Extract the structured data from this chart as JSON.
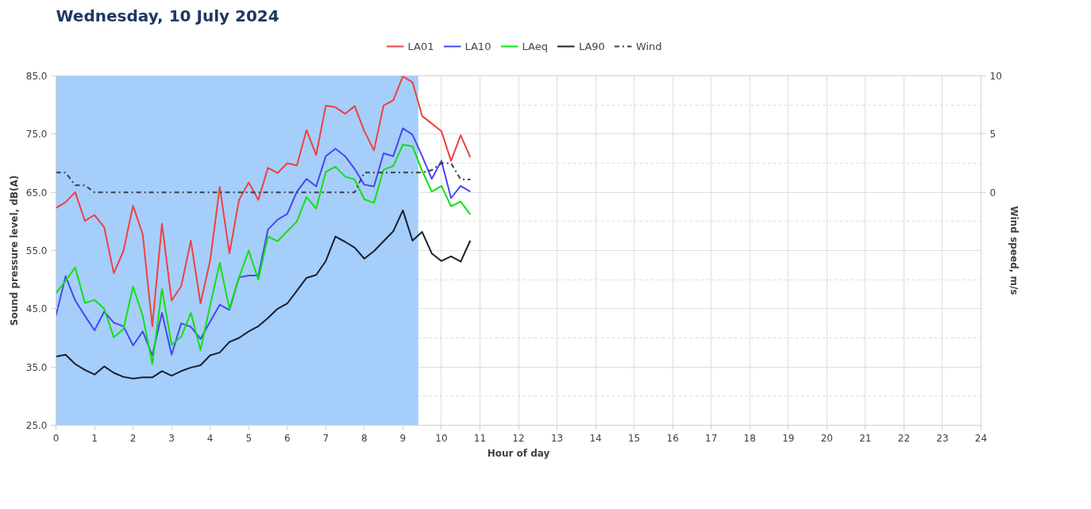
{
  "chart_data": {
    "type": "line",
    "title": "Wednesday, 10 July 2024",
    "xlabel": "Hour of day",
    "ylabel": "Sound pressure level, dB(A)",
    "y2label": "Wind speed, m/s",
    "x": [
      0,
      0.25,
      0.5,
      0.75,
      1,
      1.25,
      1.5,
      1.75,
      2,
      2.25,
      2.5,
      2.75,
      3,
      3.25,
      3.5,
      3.75,
      4,
      4.25,
      4.5,
      4.75,
      5,
      5.25,
      5.5,
      5.75,
      6,
      6.25,
      6.5,
      6.75,
      7,
      7.25,
      7.5,
      7.75,
      8,
      8.25,
      8.5,
      8.75,
      9,
      9.25,
      9.5,
      9.75,
      10,
      10.25,
      10.5,
      10.75
    ],
    "series": [
      {
        "name": "LA01",
        "color": "#f04040",
        "values": [
          62.3,
          63.3,
          65.0,
          60.1,
          61.1,
          59.0,
          51.1,
          54.9,
          62.7,
          57.8,
          42.0,
          59.6,
          46.4,
          48.9,
          56.7,
          45.9,
          53.3,
          65.9,
          54.5,
          63.7,
          66.7,
          63.7,
          69.2,
          68.3,
          70.0,
          69.6,
          75.7,
          71.4,
          79.9,
          79.6,
          78.5,
          79.8,
          75.5,
          72.2,
          79.9,
          80.8,
          84.9,
          83.9,
          78.1,
          76.8,
          75.5,
          70.4,
          74.8,
          71.0
        ]
      },
      {
        "name": "LA10",
        "color": "#4646f0",
        "values": [
          43.8,
          50.6,
          46.4,
          43.8,
          41.3,
          44.5,
          42.6,
          42.0,
          38.7,
          41.1,
          37.0,
          44.3,
          37.1,
          42.5,
          41.9,
          39.8,
          42.8,
          45.7,
          44.8,
          50.4,
          50.7,
          50.7,
          58.6,
          60.3,
          61.3,
          65.1,
          67.3,
          66.0,
          71.2,
          72.5,
          71.2,
          69.0,
          66.3,
          66.0,
          71.7,
          71.2,
          76.0,
          74.9,
          71.2,
          67.3,
          70.4,
          64.0,
          66.1,
          65.1
        ]
      },
      {
        "name": "LAeq",
        "color": "#11e011",
        "values": [
          47.7,
          49.8,
          52.1,
          46.0,
          46.5,
          45.0,
          40.1,
          41.5,
          48.8,
          43.8,
          35.5,
          48.4,
          38.8,
          40.2,
          44.3,
          37.9,
          45.6,
          52.9,
          45.0,
          50.4,
          55.0,
          50.0,
          57.4,
          56.6,
          58.3,
          60.0,
          64.2,
          62.2,
          68.5,
          69.4,
          67.7,
          67.2,
          63.8,
          63.2,
          68.9,
          69.5,
          73.2,
          72.9,
          68.7,
          65.1,
          66.1,
          62.6,
          63.4,
          61.2
        ]
      },
      {
        "name": "LA90",
        "color": "#1a1f2e",
        "values": [
          36.8,
          37.1,
          35.5,
          34.5,
          33.7,
          35.1,
          34.0,
          33.3,
          33.0,
          33.2,
          33.2,
          34.3,
          33.5,
          34.3,
          34.9,
          35.3,
          37.0,
          37.5,
          39.3,
          40.0,
          41.1,
          42.0,
          43.4,
          45.0,
          45.9,
          48.1,
          50.3,
          50.8,
          53.2,
          57.4,
          56.5,
          55.5,
          53.6,
          54.9,
          56.6,
          58.3,
          61.9,
          56.7,
          58.2,
          54.5,
          53.2,
          54.0,
          53.1,
          56.7
        ]
      },
      {
        "name": "Wind",
        "color": "#333f4f",
        "axis": "y2",
        "line_style": "dashdot",
        "values": [
          1.7,
          1.7,
          0.6,
          0.6,
          0,
          0,
          0,
          0,
          0,
          0,
          0,
          0,
          0,
          0,
          0,
          0,
          0,
          0,
          0,
          0,
          0,
          0,
          0,
          0,
          0,
          0,
          0,
          0,
          0,
          0,
          0,
          0,
          1.7,
          1.7,
          1.7,
          1.7,
          1.7,
          1.7,
          1.7,
          1.9,
          2.5,
          2.5,
          1.1,
          1.1
        ]
      }
    ],
    "bands": [
      {
        "axis": "x",
        "from": 0,
        "to": 9.4,
        "color": "#a6cefa"
      }
    ],
    "xlim": [
      0,
      24
    ],
    "xticks": [
      0,
      1,
      2,
      3,
      4,
      5,
      6,
      7,
      8,
      9,
      10,
      11,
      12,
      13,
      14,
      15,
      16,
      17,
      18,
      19,
      20,
      21,
      22,
      23,
      24
    ],
    "ylim": [
      25,
      85
    ],
    "yticks": [
      {
        "value": 25,
        "label": "25.0"
      },
      {
        "value": 35,
        "label": "35.0"
      },
      {
        "value": 45,
        "label": "45.0"
      },
      {
        "value": 55,
        "label": "55.0"
      },
      {
        "value": 65,
        "label": "65.0"
      },
      {
        "value": 75,
        "label": "75.0"
      },
      {
        "value": 85,
        "label": "85.0"
      }
    ],
    "y2lim": [
      -20,
      10
    ],
    "y2ticks": [
      0,
      5,
      10
    ],
    "grid": true,
    "legend": "top",
    "line_style": "solid",
    "marker": "none"
  }
}
